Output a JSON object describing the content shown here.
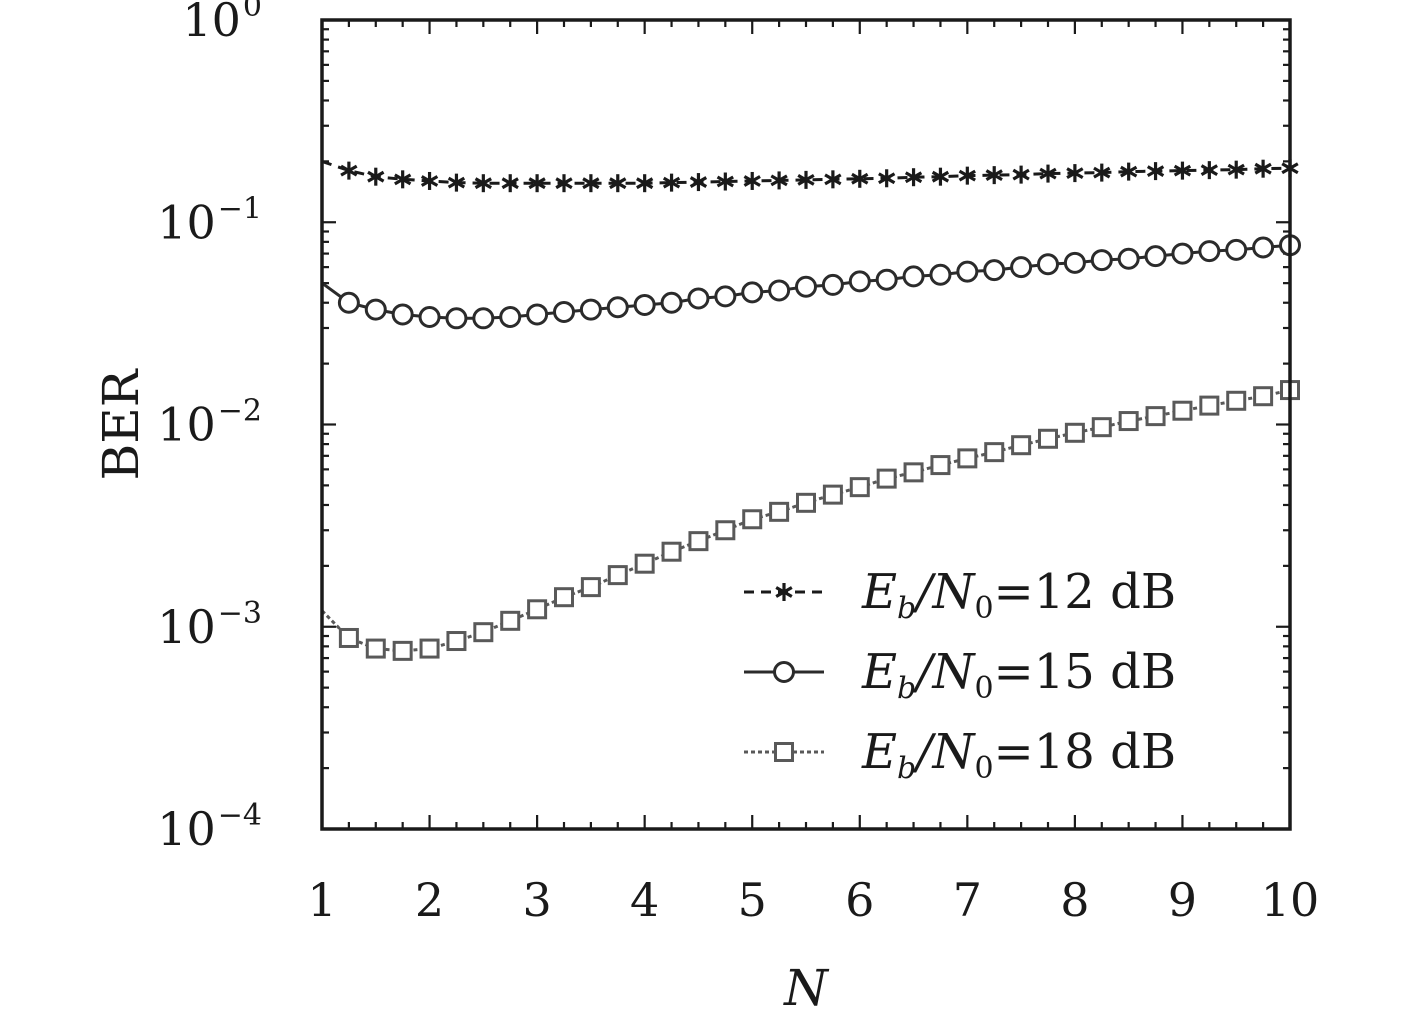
{
  "chart_data": {
    "type": "line",
    "xlabel": "N",
    "ylabel": "BER",
    "xlim": [
      1,
      10
    ],
    "ylim": [
      0.0001,
      1
    ],
    "yscale": "log",
    "grid": false,
    "legend_position": "bottom-right",
    "x_ticks": [
      "1",
      "2",
      "3",
      "4",
      "5",
      "6",
      "7",
      "8",
      "9",
      "10"
    ],
    "y_ticks": [
      {
        "value": 1,
        "base": "10",
        "exp": "0"
      },
      {
        "value": 0.1,
        "base": "10",
        "exp": "−1"
      },
      {
        "value": 0.01,
        "base": "10",
        "exp": "−2"
      },
      {
        "value": 0.001,
        "base": "10",
        "exp": "−3"
      },
      {
        "value": 0.0001,
        "base": "10",
        "exp": "−4"
      }
    ],
    "x": [
      1.0,
      1.25,
      1.5,
      1.75,
      2.0,
      2.25,
      2.5,
      2.75,
      3.0,
      3.25,
      3.5,
      3.75,
      4.0,
      4.25,
      4.5,
      4.75,
      5.0,
      5.25,
      5.5,
      5.75,
      6.0,
      6.25,
      6.5,
      6.75,
      7.0,
      7.25,
      7.5,
      7.75,
      8.0,
      8.25,
      8.5,
      8.75,
      9.0,
      9.25,
      9.5,
      9.75,
      10.0
    ],
    "series": [
      {
        "name": "E_b/N_0=12 dB",
        "legend_main": "E",
        "legend_sub1": "b",
        "legend_mid": "/N",
        "legend_sub2": "0",
        "legend_tail": "=12 dB",
        "marker": "asterisk",
        "dash": "10,7",
        "color": "#1a1a1a",
        "values": [
          0.2,
          0.18,
          0.168,
          0.163,
          0.16,
          0.157,
          0.156,
          0.156,
          0.156,
          0.156,
          0.156,
          0.156,
          0.156,
          0.157,
          0.158,
          0.159,
          0.16,
          0.161,
          0.162,
          0.163,
          0.164,
          0.165,
          0.167,
          0.168,
          0.17,
          0.171,
          0.172,
          0.174,
          0.175,
          0.176,
          0.178,
          0.179,
          0.18,
          0.181,
          0.182,
          0.184,
          0.185
        ]
      },
      {
        "name": "E_b/N_0=15 dB",
        "legend_main": "E",
        "legend_sub1": "b",
        "legend_mid": "/N",
        "legend_sub2": "0",
        "legend_tail": "=15 dB",
        "marker": "circle",
        "dash": "",
        "color": "#2b2b2b",
        "values": [
          0.05,
          0.04,
          0.037,
          0.035,
          0.034,
          0.0335,
          0.0335,
          0.034,
          0.035,
          0.036,
          0.037,
          0.038,
          0.039,
          0.04,
          0.042,
          0.043,
          0.045,
          0.046,
          0.048,
          0.049,
          0.051,
          0.052,
          0.054,
          0.055,
          0.057,
          0.058,
          0.06,
          0.062,
          0.063,
          0.065,
          0.066,
          0.068,
          0.07,
          0.072,
          0.073,
          0.075,
          0.077
        ]
      },
      {
        "name": "E_b/N_0=18 dB",
        "legend_main": "E",
        "legend_sub1": "b",
        "legend_mid": "/N",
        "legend_sub2": "0",
        "legend_tail": "=18 dB",
        "marker": "square",
        "dash": "4,3",
        "color": "#595959",
        "values": [
          0.0012,
          0.00088,
          0.00078,
          0.00076,
          0.00078,
          0.00085,
          0.00094,
          0.00107,
          0.00122,
          0.0014,
          0.00157,
          0.0018,
          0.00205,
          0.00235,
          0.00265,
          0.003,
          0.0034,
          0.0037,
          0.0041,
          0.0045,
          0.0049,
          0.0054,
          0.0058,
          0.0063,
          0.0068,
          0.0073,
          0.0079,
          0.0085,
          0.0091,
          0.0097,
          0.0104,
          0.011,
          0.0117,
          0.0124,
          0.0131,
          0.0138,
          0.0148
        ]
      }
    ]
  }
}
